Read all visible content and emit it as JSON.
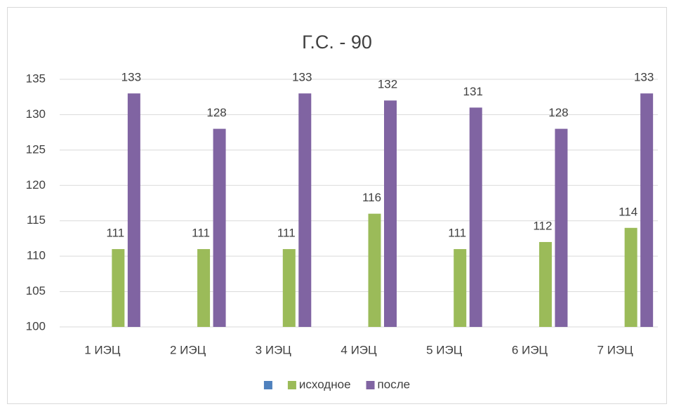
{
  "chart_data": {
    "type": "bar",
    "title": "Г.С. - 90",
    "categories": [
      "1 ИЭЦ",
      "2 ИЭЦ",
      "3 ИЭЦ",
      "4 ИЭЦ",
      "5 ИЭЦ",
      "6 ИЭЦ",
      "7 ИЭЦ"
    ],
    "series": [
      {
        "name": null,
        "color": "#4f81bd",
        "values": [
          null,
          null,
          null,
          null,
          null,
          null,
          null
        ]
      },
      {
        "name": "исходное",
        "color": "#9bbb59",
        "values": [
          111,
          111,
          111,
          116,
          111,
          112,
          114
        ]
      },
      {
        "name": "после",
        "color": "#8064a2",
        "values": [
          133,
          128,
          133,
          132,
          131,
          128,
          133
        ]
      }
    ],
    "ylim": [
      100,
      135
    ],
    "yticks": [
      100,
      105,
      110,
      115,
      120,
      125,
      130,
      135
    ],
    "grid": true,
    "legend": "bottom"
  }
}
